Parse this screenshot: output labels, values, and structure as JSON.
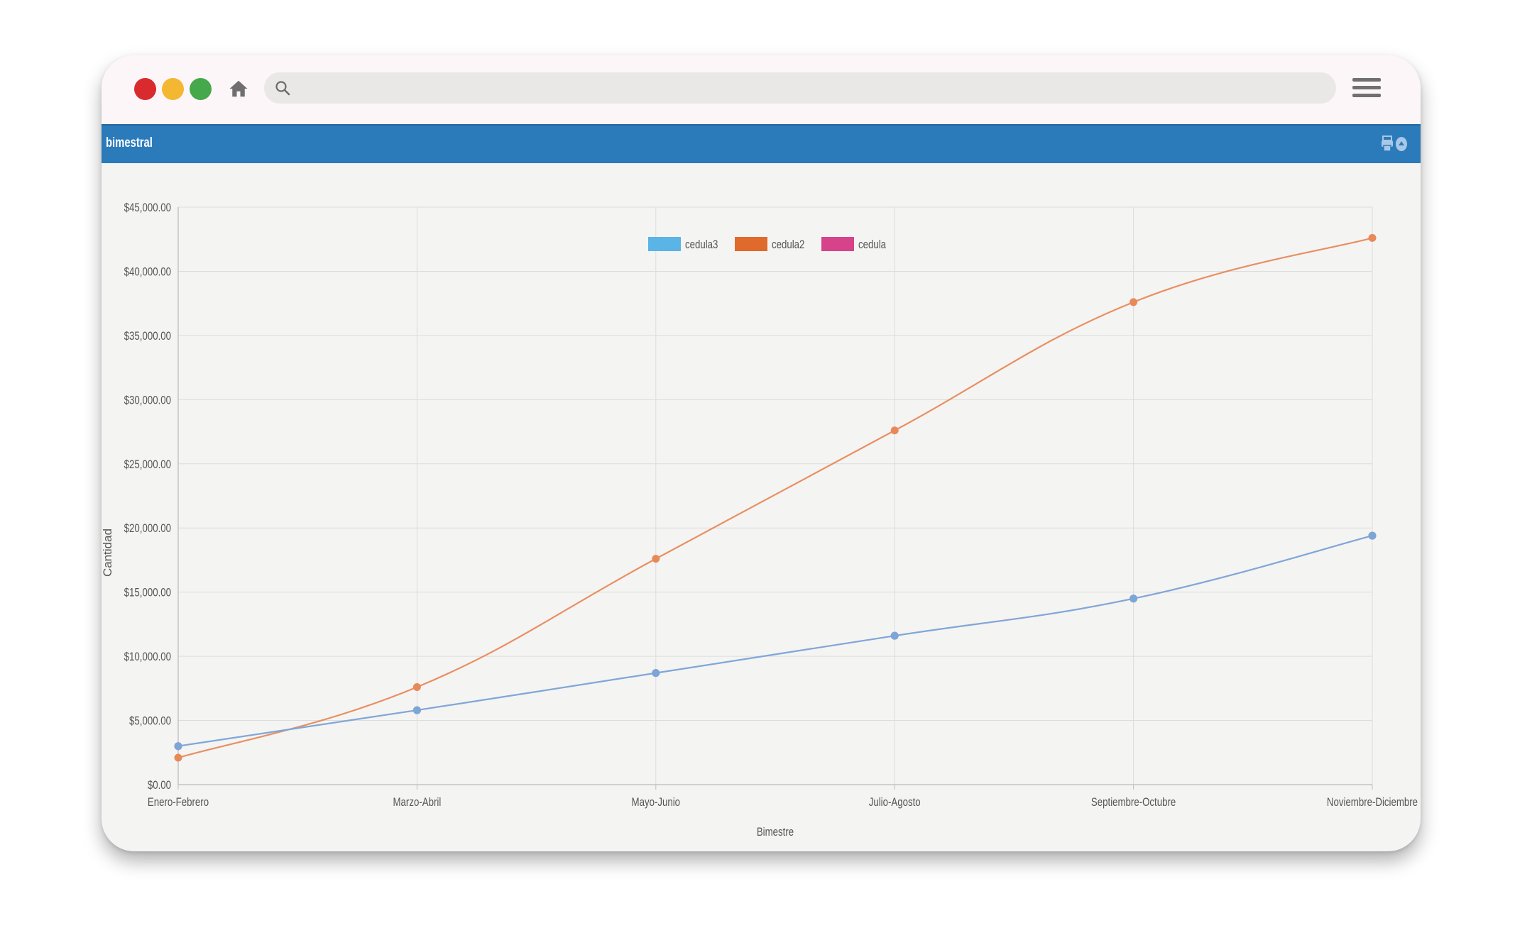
{
  "browser": {
    "address_value": "",
    "colors": {
      "close": "#d92b2e",
      "minimize": "#f3b731",
      "maximize": "#45a84a"
    },
    "icons": [
      "home-icon",
      "search-icon",
      "menu-icon"
    ]
  },
  "panel": {
    "title": "bimestral",
    "header_color": "#2b7bbb",
    "icons": [
      "print-icon",
      "settings-icon"
    ]
  },
  "chart_data": {
    "type": "line",
    "title": "",
    "xlabel": "Bimestre",
    "ylabel": "Cantidad",
    "categories": [
      "Enero-Febrero",
      "Marzo-Abril",
      "Mayo-Junio",
      "Julio-Agosto",
      "Septiembre-Octubre",
      "Noviembre-Diciembre"
    ],
    "ylim": [
      0,
      45000
    ],
    "yticks": [
      0,
      5000,
      10000,
      15000,
      20000,
      25000,
      30000,
      35000,
      40000,
      45000
    ],
    "ytick_labels": [
      "$0.00",
      "$5,000.00",
      "$10,000.00",
      "$15,000.00",
      "$20,000.00",
      "$25,000.00",
      "$30,000.00",
      "$35,000.00",
      "$40,000.00",
      "$45,000.00"
    ],
    "grid": true,
    "legend_position": "top-center",
    "series": [
      {
        "name": "cedula3",
        "legend_color": "#5ab4e5",
        "line_color": "#7aa6d8",
        "values": [
          3000,
          5800,
          8700,
          11600,
          14500,
          19400
        ]
      },
      {
        "name": "cedula2",
        "legend_color": "#e06a2c",
        "line_color": "#e8895a",
        "values": [
          2100,
          7600,
          17600,
          27600,
          37600,
          42600
        ]
      },
      {
        "name": "cedula",
        "legend_color": "#d6438a",
        "line_color": "#d6438a",
        "values": [
          3000,
          5800,
          8700,
          11600,
          14500,
          19400
        ]
      }
    ]
  }
}
